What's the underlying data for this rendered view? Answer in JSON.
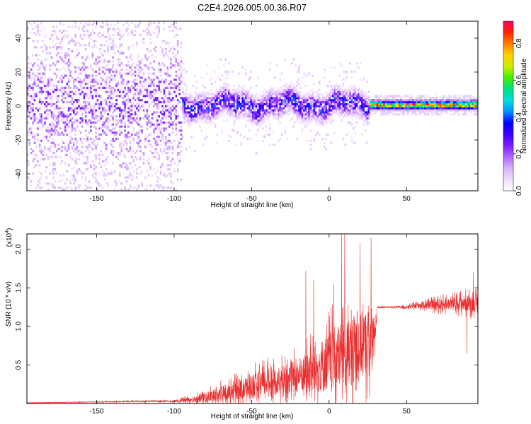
{
  "figure_title": "C2E4.2026.005.00.36.R07",
  "chart_data": [
    {
      "type": "heatmap",
      "name": "spectrogram",
      "title": "C2E4.2026.005.00.36.R07",
      "xlabel": "Height of straight line (km)",
      "ylabel": "Frequency (Hz)",
      "xlim": [
        -195,
        96
      ],
      "ylim": [
        -50,
        50
      ],
      "xticks": [
        -150,
        -100,
        -50,
        0,
        50
      ],
      "yticks": [
        -40,
        -20,
        0,
        20,
        40
      ],
      "colorbar": {
        "label": "Normalized spectral amplitude",
        "range": [
          0,
          0.92
        ],
        "ticks": [
          0,
          0.2,
          0.4,
          0.6,
          0.8
        ],
        "colormap": [
          "#ffffff",
          "#f0dcff",
          "#d9b3ff",
          "#b266ff",
          "#7a1fff",
          "#4000ff",
          "#0000ff",
          "#0090ff",
          "#00e0e0",
          "#00e080",
          "#44ee00",
          "#ccee00",
          "#ffd000",
          "#ff8000",
          "#ff2000",
          "#ff0060"
        ]
      },
      "features": [
        {
          "x_range": [
            -195,
            -95
          ],
          "description": "broadband scatter",
          "amplitude": 0.1
        },
        {
          "x_range": [
            -95,
            25
          ],
          "center_freq": 0,
          "width_hz": 10,
          "amplitude": 0.3
        },
        {
          "x_range": [
            25,
            96
          ],
          "center_freq": 0,
          "width_hz": 4,
          "amplitude": 0.9
        }
      ]
    },
    {
      "type": "line",
      "name": "snr",
      "xlabel": "Height of straight line (km)",
      "ylabel": "SNR (10 * v/v)",
      "yscale_label": "(x10",
      "yscale_exponent": "4",
      "xlim": [
        -195,
        96
      ],
      "ylim": [
        0,
        2.2
      ],
      "xticks": [
        -150,
        -100,
        -50,
        0,
        50
      ],
      "yticks": [
        0.5,
        1.0,
        1.5,
        2.0
      ],
      "ytick_labels": [
        "0.5",
        "1.0",
        "1.5",
        "2.0"
      ],
      "color": "#e83030",
      "series": [
        {
          "name": "SNR",
          "x": [
            -195,
            -150,
            -120,
            -100,
            -90,
            -80,
            -70,
            -60,
            -50,
            -40,
            -30,
            -20,
            -10,
            0,
            10,
            20,
            28,
            30,
            31,
            40,
            50,
            60,
            70,
            80,
            90,
            96
          ],
          "mean": [
            0.01,
            0.02,
            0.03,
            0.03,
            0.05,
            0.08,
            0.12,
            0.18,
            0.22,
            0.28,
            0.3,
            0.36,
            0.42,
            0.55,
            0.65,
            0.75,
            0.82,
            0.95,
            1.25,
            1.25,
            1.25,
            1.28,
            1.28,
            1.3,
            1.3,
            1.3
          ],
          "amp": [
            0.005,
            0.01,
            0.02,
            0.02,
            0.06,
            0.12,
            0.18,
            0.22,
            0.3,
            0.32,
            0.35,
            0.4,
            0.55,
            0.7,
            0.8,
            0.8,
            0.8,
            0.2,
            0.02,
            0.02,
            0.03,
            0.08,
            0.12,
            0.15,
            0.2,
            0.2
          ],
          "peaks": [
            [
              -15,
              1.72
            ],
            [
              8,
              2.2
            ],
            [
              10,
              2.2
            ],
            [
              20,
              2.08
            ],
            [
              27,
              2.15
            ],
            [
              -10,
              1.6
            ],
            [
              3,
              1.55
            ],
            [
              93,
              1.7
            ],
            [
              89,
              0.65
            ]
          ]
        }
      ]
    }
  ]
}
